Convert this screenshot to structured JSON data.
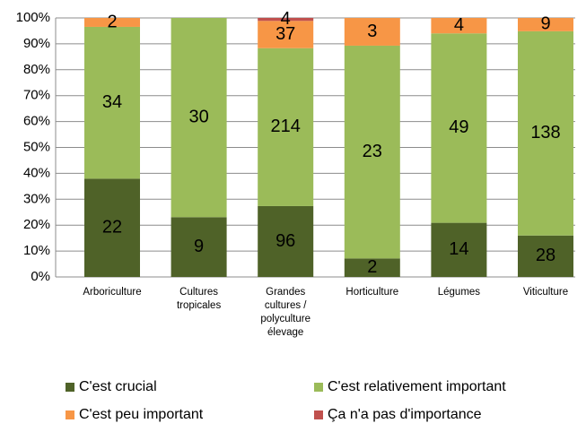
{
  "chart_data": {
    "type": "stacked_percent_bar",
    "categories": [
      "Arboriculture",
      "Cultures tropicales",
      "Grandes cultures / polyculture élevage",
      "Horticulture",
      "Légumes",
      "Viticulture"
    ],
    "series": [
      {
        "name": "C'est crucial",
        "color": "#4f6228",
        "values": [
          22,
          9,
          96,
          2,
          14,
          28
        ]
      },
      {
        "name": "C'est relativement important",
        "color": "#9bbb59",
        "values": [
          34,
          30,
          214,
          23,
          49,
          138
        ]
      },
      {
        "name": "C'est peu important",
        "color": "#f79646",
        "values": [
          2,
          0,
          37,
          3,
          4,
          9
        ]
      },
      {
        "name": "Ça n'a pas d'importance",
        "color": "#c0504d",
        "values": [
          0,
          0,
          4,
          0,
          0,
          0
        ]
      }
    ],
    "ylim": [
      0,
      100
    ],
    "yticks": [
      {
        "value": 0,
        "label": "0%"
      },
      {
        "value": 10,
        "label": "10%"
      },
      {
        "value": 20,
        "label": "20%"
      },
      {
        "value": 30,
        "label": "30%"
      },
      {
        "value": 40,
        "label": "40%"
      },
      {
        "value": 50,
        "label": "50%"
      },
      {
        "value": 60,
        "label": "60%"
      },
      {
        "value": 70,
        "label": "70%"
      },
      {
        "value": 80,
        "label": "80%"
      },
      {
        "value": 90,
        "label": "90%"
      },
      {
        "value": 100,
        "label": "100%"
      }
    ],
    "grid": true
  }
}
